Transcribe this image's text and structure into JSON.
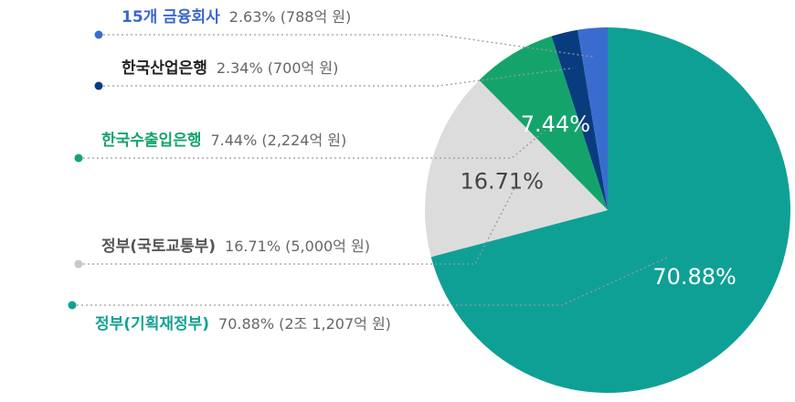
{
  "chart_data": {
    "type": "pie",
    "unit": "%",
    "slices": [
      {
        "name": "정부(기획재정부)",
        "value": 70.88,
        "pct_label": "70.88%",
        "detail": "70.88% (2조 1,207억 원)",
        "color": "#0FA095",
        "name_color": "#12A193"
      },
      {
        "name": "정부(국토교통부)",
        "value": 16.71,
        "pct_label": "16.71%",
        "detail": "16.71% (5,000억 원)",
        "color": "#DCDCDC",
        "name_color": "#555555"
      },
      {
        "name": "한국수출입은행",
        "value": 7.44,
        "pct_label": "7.44%",
        "detail": "7.44% (2,224억 원)",
        "color": "#14A46B",
        "name_color": "#14A46B"
      },
      {
        "name": "한국산업은행",
        "value": 2.34,
        "pct_label": "",
        "detail": "2.34% (700억 원)",
        "color": "#083C7E",
        "name_color": "#222222"
      },
      {
        "name": "15개 금융회사",
        "value": 2.63,
        "pct_label": "",
        "detail": "2.63% (788억 원)",
        "color": "#3A6CD0",
        "name_color": "#3A66CC"
      }
    ]
  }
}
